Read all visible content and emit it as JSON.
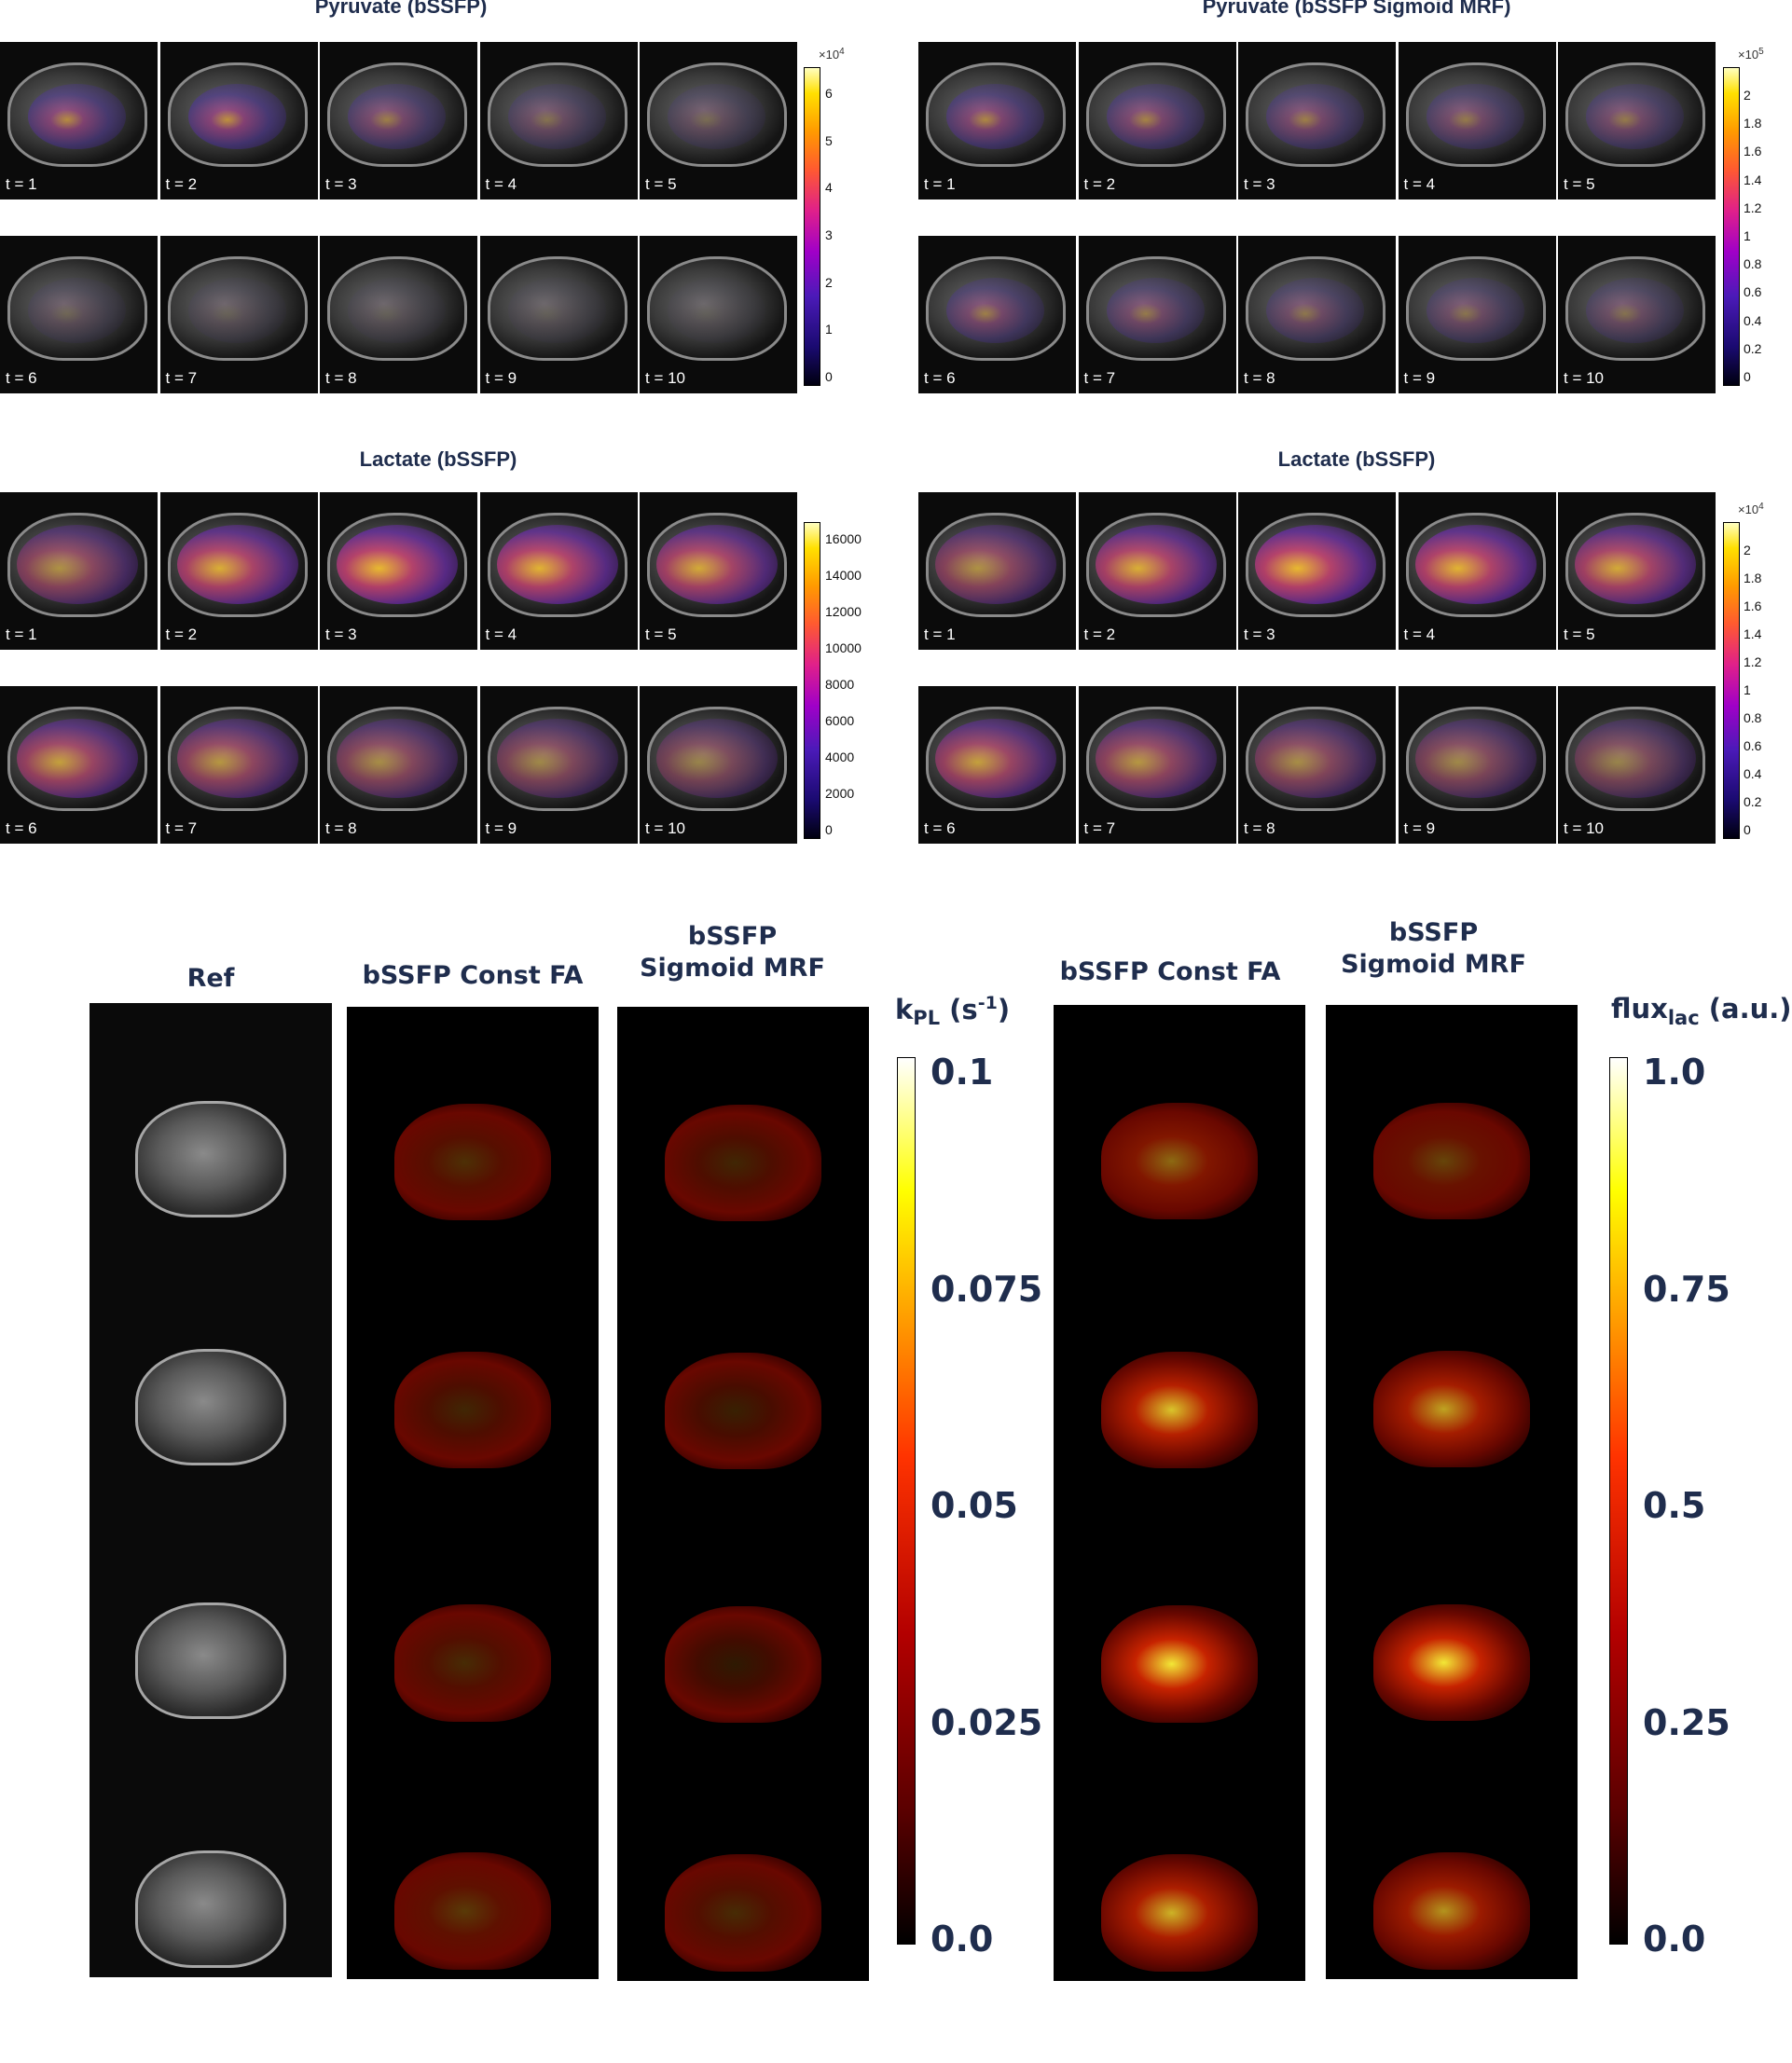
{
  "panels": [
    {
      "id": "pyr-const",
      "title": "Pyruvate (bSSFP)",
      "frames": [
        "t = 1",
        "t = 2",
        "t = 3",
        "t = 4",
        "t = 5",
        "t = 6",
        "t = 7",
        "t = 8",
        "t = 9",
        "t = 10"
      ],
      "colorbar": {
        "multiplier_base": "×10",
        "multiplier_exp": "4",
        "ticks": [
          "6",
          "5",
          "4",
          "3",
          "2",
          "1",
          "0"
        ]
      },
      "intensity": [
        0.55,
        0.6,
        0.4,
        0.25,
        0.18,
        0.12,
        0.08,
        0.06,
        0.05,
        0.04
      ]
    },
    {
      "id": "pyr-mrf",
      "title": "Pyruvate (bSSFP Sigmoid MRF)",
      "frames": [
        "t = 1",
        "t = 2",
        "t = 3",
        "t = 4",
        "t = 5",
        "t = 6",
        "t = 7",
        "t = 8",
        "t = 9",
        "t = 10"
      ],
      "colorbar": {
        "multiplier_base": "×10",
        "multiplier_exp": "5",
        "ticks": [
          "2",
          "1.8",
          "1.6",
          "1.4",
          "1.2",
          "1",
          "0.8",
          "0.6",
          "0.4",
          "0.2",
          "0"
        ]
      },
      "intensity": [
        0.5,
        0.45,
        0.4,
        0.35,
        0.35,
        0.4,
        0.35,
        0.3,
        0.28,
        0.25
      ]
    },
    {
      "id": "lac-const",
      "title": "Lactate (bSSFP)",
      "frames": [
        "t = 1",
        "t = 2",
        "t = 3",
        "t = 4",
        "t = 5",
        "t = 6",
        "t = 7",
        "t = 8",
        "t = 9",
        "t = 10"
      ],
      "colorbar": {
        "multiplier_base": "",
        "multiplier_exp": "",
        "ticks": [
          "16000",
          "14000",
          "12000",
          "10000",
          "8000",
          "6000",
          "4000",
          "2000",
          "0"
        ]
      },
      "intensity": [
        0.55,
        0.85,
        0.95,
        0.9,
        0.8,
        0.7,
        0.6,
        0.5,
        0.45,
        0.4
      ]
    },
    {
      "id": "lac-mrf",
      "title": "Lactate (bSSFP)",
      "frames": [
        "t = 1",
        "t = 2",
        "t = 3",
        "t = 4",
        "t = 5",
        "t = 6",
        "t = 7",
        "t = 8",
        "t = 9",
        "t = 10"
      ],
      "colorbar": {
        "multiplier_base": "×10",
        "multiplier_exp": "4",
        "ticks": [
          "2",
          "1.8",
          "1.6",
          "1.4",
          "1.2",
          "1",
          "0.8",
          "0.6",
          "0.4",
          "0.2",
          "0"
        ]
      },
      "intensity": [
        0.55,
        0.85,
        0.95,
        0.9,
        0.8,
        0.7,
        0.6,
        0.5,
        0.45,
        0.4
      ]
    }
  ],
  "bottom": {
    "ref_title": "Ref",
    "kpl_const_title": "bSSFP Const FA",
    "kpl_mrf_title": "bSSFP Sigmoid MRF",
    "flux_const_title": "bSSFP Const FA",
    "flux_mrf_title": "bSSFP Sigmoid MRF",
    "kpl_label": {
      "base": "k",
      "sub": "PL",
      "unit_pre": " (s",
      "unit_sup": "-1",
      "unit_post": ")"
    },
    "kpl_ticks": [
      "0.1",
      "0.075",
      "0.05",
      "0.025",
      "0.0"
    ],
    "flux_label": {
      "base": "flux",
      "sub": "lac",
      "unit": " (a.u.)"
    },
    "flux_ticks": [
      "1.0",
      "0.75",
      "0.5",
      "0.25",
      "0.0"
    ],
    "kpl_const_levels": [
      0.3,
      0.25,
      0.28,
      0.35
    ],
    "kpl_mrf_levels": [
      0.25,
      0.22,
      0.18,
      0.28
    ],
    "flux_const_levels": [
      0.55,
      0.85,
      0.95,
      0.8
    ],
    "flux_mrf_levels": [
      0.4,
      0.75,
      0.95,
      0.7
    ]
  }
}
